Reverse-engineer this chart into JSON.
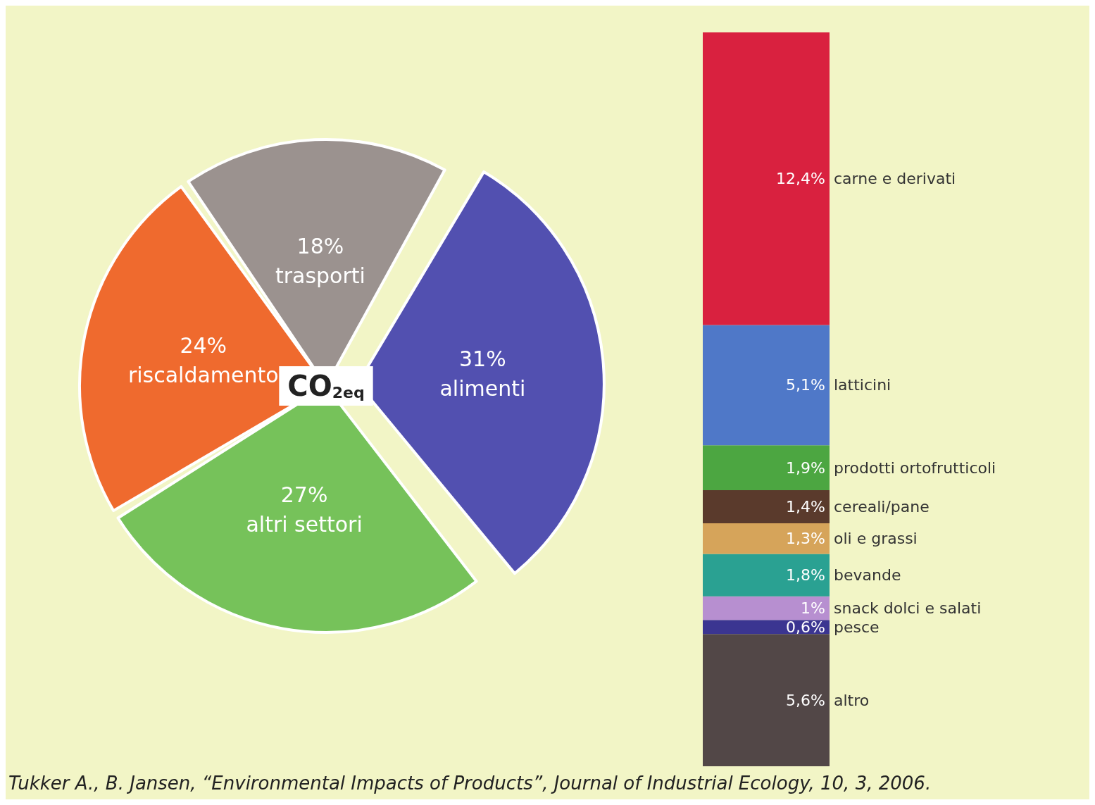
{
  "chart_data": [
    {
      "type": "pie",
      "title": "CO$_{2eq}$",
      "categories": [
        "trasporti",
        "alimenti",
        "altri settori",
        "riscaldamento"
      ],
      "values": [
        18,
        31,
        27,
        24
      ],
      "colors": [
        "#9b928f",
        "#5250b0",
        "#76c25a",
        "#ef6a2e"
      ],
      "value_labels": [
        "18%",
        "31%",
        "27%",
        "24%"
      ],
      "legend": false,
      "annotations": [
        "Tukker A., B. Jansen, “Environmental Impacts of Products”, Journal of Industrial Ecology, 10, 3, 2006."
      ]
    },
    {
      "type": "bar",
      "stacked": true,
      "categories": [
        null
      ],
      "tick_labels": false,
      "legend": false,
      "series": [
        {
          "name": "altro",
          "color": "#524747",
          "values": [
            5.6
          ],
          "value_labels": [
            "5,6%"
          ]
        },
        {
          "name": "pesce",
          "color": "#3b3591",
          "values": [
            0.6
          ],
          "value_labels": [
            "0,6%"
          ]
        },
        {
          "name": "snack dolci e salati",
          "color": "#b78fd0",
          "values": [
            1
          ],
          "value_labels": [
            "1%"
          ]
        },
        {
          "name": "bevande",
          "color": "#2aa192",
          "values": [
            1.8
          ],
          "value_labels": [
            "1,8%"
          ]
        },
        {
          "name": "oli e grassi",
          "color": "#d6a45a",
          "values": [
            1.3
          ],
          "value_labels": [
            "1,3%"
          ]
        },
        {
          "name": "cereali/pane",
          "color": "#5a3a2c",
          "values": [
            1.4
          ],
          "value_labels": [
            "1,4%"
          ]
        },
        {
          "name": "prodotti ortofrutticoli",
          "color": "#4ca641",
          "values": [
            1.9
          ],
          "value_labels": [
            "1,9%"
          ]
        },
        {
          "name": "latticini",
          "color": "#4f78c8",
          "values": [
            5.1
          ],
          "value_labels": [
            "5,1%"
          ]
        },
        {
          "name": "carne e derivati",
          "color": "#d9213f",
          "values": [
            12.4
          ],
          "value_labels": [
            "12,4%"
          ]
        }
      ]
    }
  ]
}
